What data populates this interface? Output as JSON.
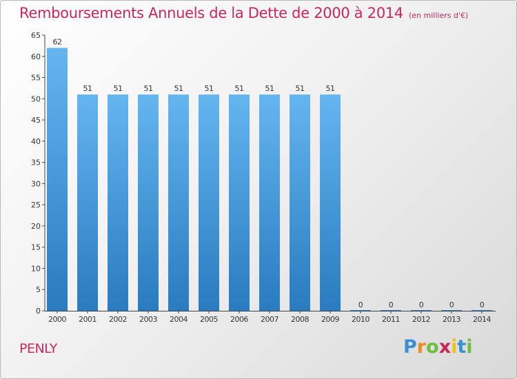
{
  "title": "Remboursements Annuels de la Dette de 2000 à 2014",
  "unit_note": "(en milliers d'€)",
  "place": "PENLY",
  "logo": {
    "letters": [
      "P",
      "r",
      "o",
      "x",
      "i",
      "t",
      "i"
    ],
    "colors": [
      "#3a8fd6",
      "#f08a1c",
      "#6cbf3a",
      "#c8285a",
      "#f0c21c",
      "#3a8fd6",
      "#6cbf3a"
    ]
  },
  "colors": {
    "title": "#c8285a",
    "bar_top": "#64b5f0",
    "bar_bottom": "#2a7bbf",
    "axis": "#444444"
  },
  "chart_data": {
    "type": "bar",
    "categories": [
      "2000",
      "2001",
      "2002",
      "2003",
      "2004",
      "2005",
      "2006",
      "2007",
      "2008",
      "2009",
      "2010",
      "2011",
      "2012",
      "2013",
      "2014"
    ],
    "values": [
      62,
      51,
      51,
      51,
      51,
      51,
      51,
      51,
      51,
      51,
      0,
      0,
      0,
      0,
      0
    ],
    "ylim": [
      0,
      65
    ],
    "yticks": [
      0,
      5,
      10,
      15,
      20,
      25,
      30,
      35,
      40,
      45,
      50,
      55,
      60,
      65
    ],
    "grid": false,
    "legend": "none"
  }
}
